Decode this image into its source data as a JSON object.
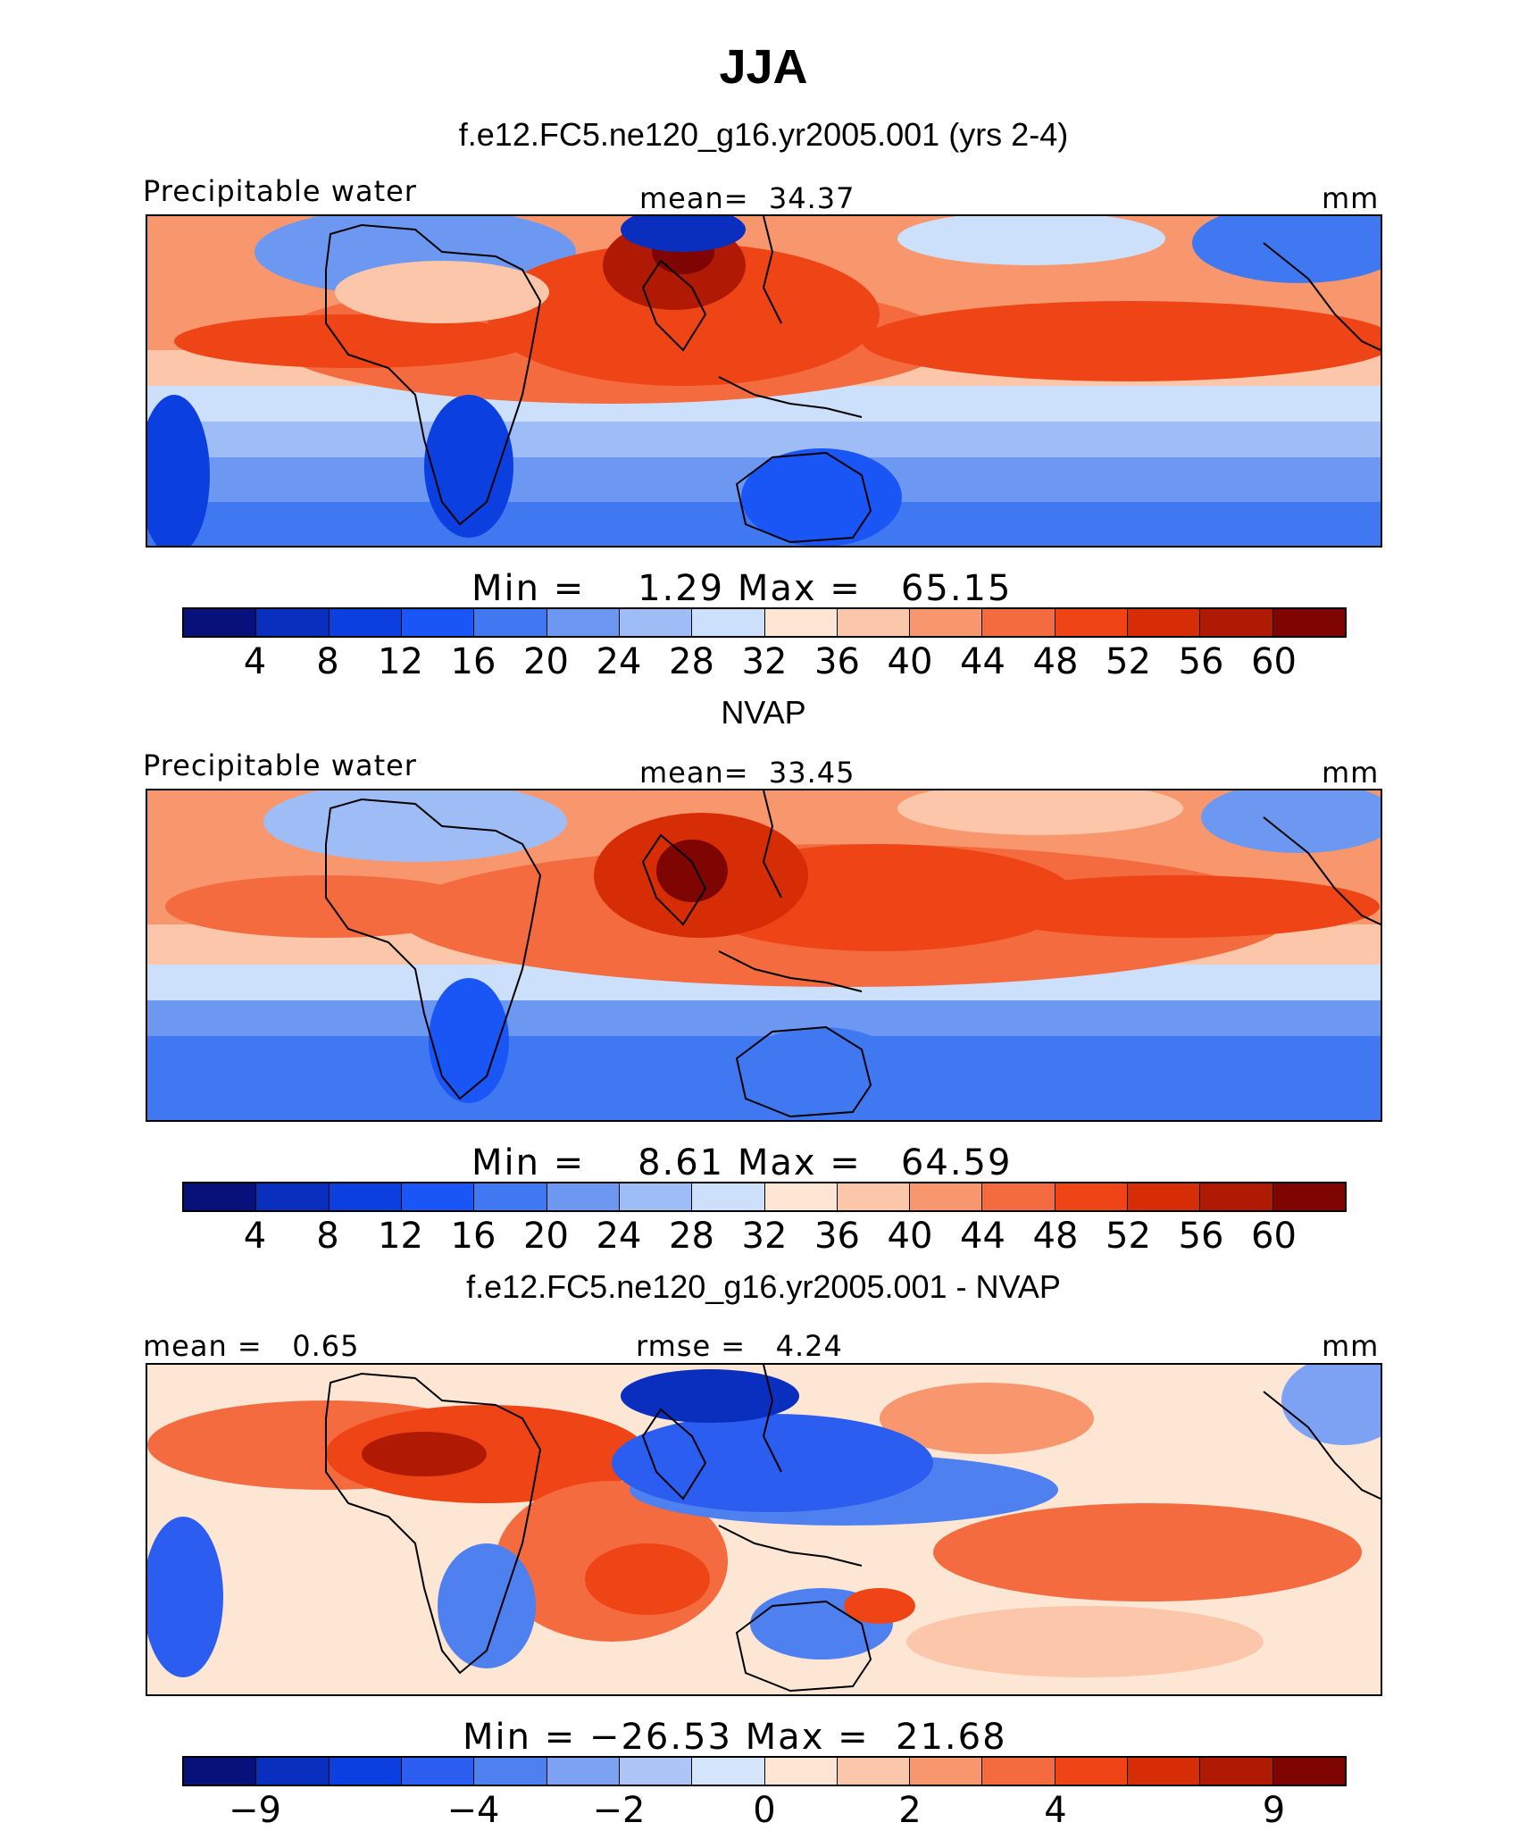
{
  "title": "JJA",
  "colors": {
    "seq": [
      "#08107a",
      "#0a2fbf",
      "#0b3fe0",
      "#1a55f5",
      "#3f78f0",
      "#6c98f2",
      "#9ebcf6",
      "#cde0fb",
      "#fde6d4",
      "#fbc6aa",
      "#f8976e",
      "#f36b3f",
      "#ee4416",
      "#d72d07",
      "#b01a05",
      "#7f0503"
    ],
    "diff": [
      "#08107a",
      "#0a2fbf",
      "#0b3fe0",
      "#2a5df0",
      "#4f80f0",
      "#7ea2f3",
      "#adc6f7",
      "#d5e5fb",
      "#fde6d4",
      "#fbc6aa",
      "#f8976e",
      "#f36b3f",
      "#ee4416",
      "#d72d07",
      "#b01a05",
      "#7f0503"
    ]
  },
  "panels": [
    {
      "title": "f.e12.FC5.ne120_g16.yr2005.001 (yrs 2-4)",
      "left_label": "Precipitable water",
      "center_label": "mean=  34.37",
      "right_label": "mm",
      "minmax": "Min =    1.29 Max =   65.15",
      "ticks": [
        "4",
        "8",
        "12",
        "16",
        "20",
        "24",
        "28",
        "32",
        "36",
        "40",
        "44",
        "48",
        "52",
        "56",
        "60"
      ]
    },
    {
      "title": "NVAP",
      "left_label": "Precipitable water",
      "center_label": "mean=  33.45",
      "right_label": "mm",
      "minmax": "Min =    8.61 Max =   64.59",
      "ticks": [
        "4",
        "8",
        "12",
        "16",
        "20",
        "24",
        "28",
        "32",
        "36",
        "40",
        "44",
        "48",
        "52",
        "56",
        "60"
      ]
    },
    {
      "title": "f.e12.FC5.ne120_g16.yr2005.001 - NVAP",
      "left_label": "mean =   0.65",
      "center_label": "rmse =   4.24",
      "right_label": "mm",
      "minmax": "Min = −26.53 Max =  21.68",
      "ticks": [
        "−9",
        "−4",
        "−2",
        "0",
        "2",
        "4",
        "9"
      ]
    }
  ]
}
